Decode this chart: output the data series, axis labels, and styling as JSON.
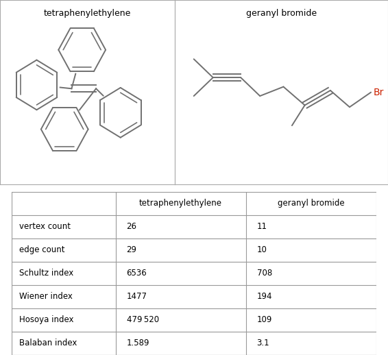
{
  "title_left": "tetraphenylethylene",
  "title_right": "geranyl bromide",
  "table_headers": [
    "",
    "tetraphenylethylene",
    "geranyl bromide"
  ],
  "table_rows": [
    [
      "vertex count",
      "26",
      "11"
    ],
    [
      "edge count",
      "29",
      "10"
    ],
    [
      "Schultz index",
      "6536",
      "708"
    ],
    [
      "Wiener index",
      "1477",
      "194"
    ],
    [
      "Hosoya index",
      "479 520",
      "109"
    ],
    [
      "Balaban index",
      "1.589",
      "3.1"
    ]
  ],
  "bg_color": "#ffffff",
  "line_color": "#707070",
  "text_color": "#000000",
  "br_color": "#cc2200",
  "border_color": "#aaaaaa",
  "table_border_color": "#999999"
}
